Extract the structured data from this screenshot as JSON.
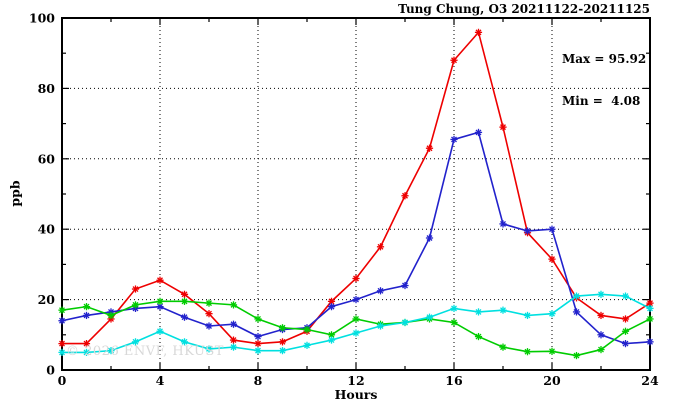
{
  "title": "Tung Chung, O3 20211122-20211125",
  "annotations": {
    "max_label": "Max = 95.92",
    "min_label": "Min =  4.08"
  },
  "watermark": "© 2026 ENVF, HKUST",
  "chart_data": {
    "type": "line",
    "title": "Tung Chung, O3 20211122-20211125",
    "xlabel": "Hours",
    "ylabel": "ppb",
    "xlim": [
      0,
      24
    ],
    "ylim": [
      0,
      100
    ],
    "x_major_ticks": [
      0,
      4,
      8,
      12,
      16,
      20,
      24
    ],
    "x_minor_step": 2,
    "y_major_ticks": [
      0,
      20,
      40,
      60,
      80,
      100
    ],
    "y_minor_step": 10,
    "grid": "dotted lines at x=4,8,12,16,20 and y=20,40,60,80",
    "legend": "none",
    "marker": "asterisk",
    "max_value": 95.92,
    "min_value": 4.08,
    "x": [
      0,
      1,
      2,
      3,
      4,
      5,
      6,
      7,
      8,
      9,
      10,
      11,
      12,
      13,
      14,
      15,
      16,
      17,
      18,
      19,
      20,
      21,
      22,
      23,
      24
    ],
    "series": [
      {
        "name": "red",
        "color": "#ee0000",
        "values": [
          7.5,
          7.5,
          14.5,
          23,
          25.5,
          21.5,
          16,
          8.5,
          7.5,
          8,
          11,
          19.5,
          26,
          35,
          49.5,
          63,
          88,
          95.92,
          69,
          39,
          31.5,
          20.5,
          15.5,
          14.5,
          19
        ]
      },
      {
        "name": "blue",
        "color": "#2222cc",
        "values": [
          14,
          15.5,
          16.5,
          17.5,
          18,
          15,
          12.5,
          13,
          9.5,
          11.5,
          12,
          18,
          20,
          22.5,
          24,
          37.5,
          65.5,
          67.5,
          41.5,
          39.5,
          40,
          16.5,
          10,
          7.5,
          8
        ]
      },
      {
        "name": "green",
        "color": "#00cc00",
        "values": [
          17,
          18,
          15.5,
          18.5,
          19.5,
          19.5,
          19,
          18.5,
          14.5,
          12,
          11.5,
          10,
          14.5,
          13,
          13.5,
          14.5,
          13.5,
          9.5,
          6.5,
          5.2,
          5.3,
          4.1,
          5.8,
          11,
          14.5
        ]
      },
      {
        "name": "cyan",
        "color": "#00e0e0",
        "values": [
          5,
          5,
          5.5,
          8,
          11,
          8,
          6,
          6.5,
          5.5,
          5.5,
          7,
          8.5,
          10.5,
          12.5,
          13.5,
          15,
          17.5,
          16.5,
          17,
          15.5,
          16,
          21,
          21.5,
          21,
          17.5
        ]
      }
    ]
  }
}
